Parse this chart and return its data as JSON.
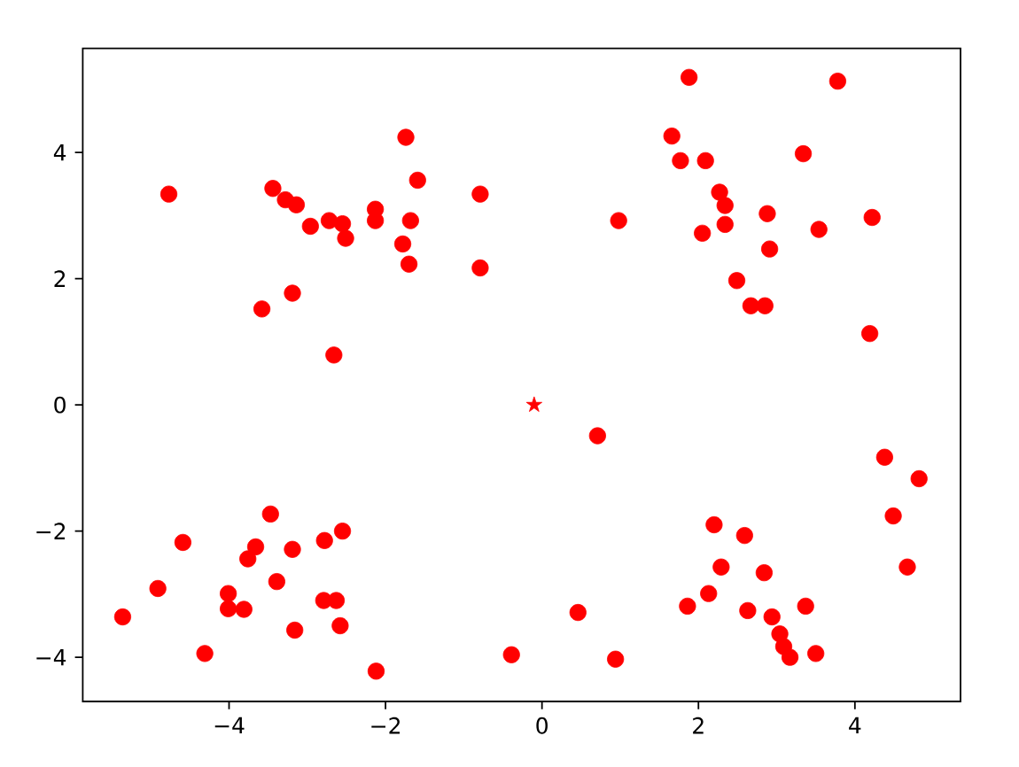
{
  "chart_data": {
    "type": "scatter",
    "marker": "circle",
    "xlim": [
      -5.87,
      5.35
    ],
    "ylim": [
      -4.7,
      5.65
    ],
    "xticks": [
      {
        "value": -4,
        "label": "−4"
      },
      {
        "value": -2,
        "label": "−2"
      },
      0,
      2,
      4
    ],
    "yticks": [
      {
        "value": -4,
        "label": "−4"
      },
      {
        "value": -2,
        "label": "−2"
      },
      0,
      2,
      4
    ],
    "series": [
      {
        "color": "#ff0000",
        "x": [
          -4.77,
          -3.44,
          -3.28,
          -3.14,
          -2.96,
          -2.72,
          -2.55,
          -2.51,
          -2.13,
          -2.13,
          -1.74,
          -1.59,
          -1.68,
          -1.78,
          -1.7,
          -0.79,
          -0.79,
          -3.19,
          -3.58,
          -2.66,
          1.88,
          3.78,
          1.66,
          1.77,
          2.09,
          3.34,
          2.27,
          2.34,
          2.34,
          0.98,
          2.05,
          2.88,
          3.54,
          4.22,
          2.91,
          2.49,
          2.67,
          2.85,
          4.19,
          -5.36,
          -4.91,
          -4.59,
          -4.31,
          -4.01,
          -4.01,
          -3.81,
          -3.76,
          -3.66,
          -3.47,
          -3.39,
          -3.19,
          -3.16,
          -2.78,
          -2.55,
          -2.79,
          -2.63,
          -2.58,
          -2.12,
          -0.39,
          0.71,
          0.46,
          0.94,
          1.86,
          2.13,
          2.2,
          2.29,
          2.59,
          2.63,
          2.84,
          2.94,
          3.04,
          3.09,
          3.17,
          3.37,
          3.5,
          4.38,
          4.82,
          4.49,
          4.67
        ],
        "values": [
          3.34,
          3.43,
          3.25,
          3.17,
          2.83,
          2.92,
          2.87,
          2.64,
          3.1,
          2.92,
          4.24,
          3.56,
          2.92,
          2.55,
          2.23,
          3.34,
          2.17,
          1.77,
          1.52,
          0.79,
          5.19,
          5.13,
          4.26,
          3.87,
          3.87,
          3.98,
          3.37,
          3.16,
          2.86,
          2.92,
          2.72,
          3.03,
          2.78,
          2.97,
          2.47,
          1.97,
          1.57,
          1.57,
          1.13,
          -3.36,
          -2.91,
          -2.18,
          -3.94,
          -2.99,
          -3.23,
          -3.24,
          -2.44,
          -2.25,
          -1.73,
          -2.8,
          -2.29,
          -3.57,
          -2.15,
          -2.0,
          -3.1,
          -3.1,
          -3.5,
          -4.22,
          -3.96,
          -0.49,
          -3.29,
          -4.03,
          -3.19,
          -2.99,
          -1.9,
          -2.57,
          -2.07,
          -3.26,
          -2.66,
          -3.36,
          -3.63,
          -3.83,
          -4.0,
          -3.19,
          -3.94,
          -0.83,
          -1.17,
          -1.76,
          -2.57
        ]
      },
      {
        "color": "#ff0000",
        "marker": "star",
        "x": [
          -0.1
        ],
        "values": [
          0.0
        ]
      }
    ]
  }
}
